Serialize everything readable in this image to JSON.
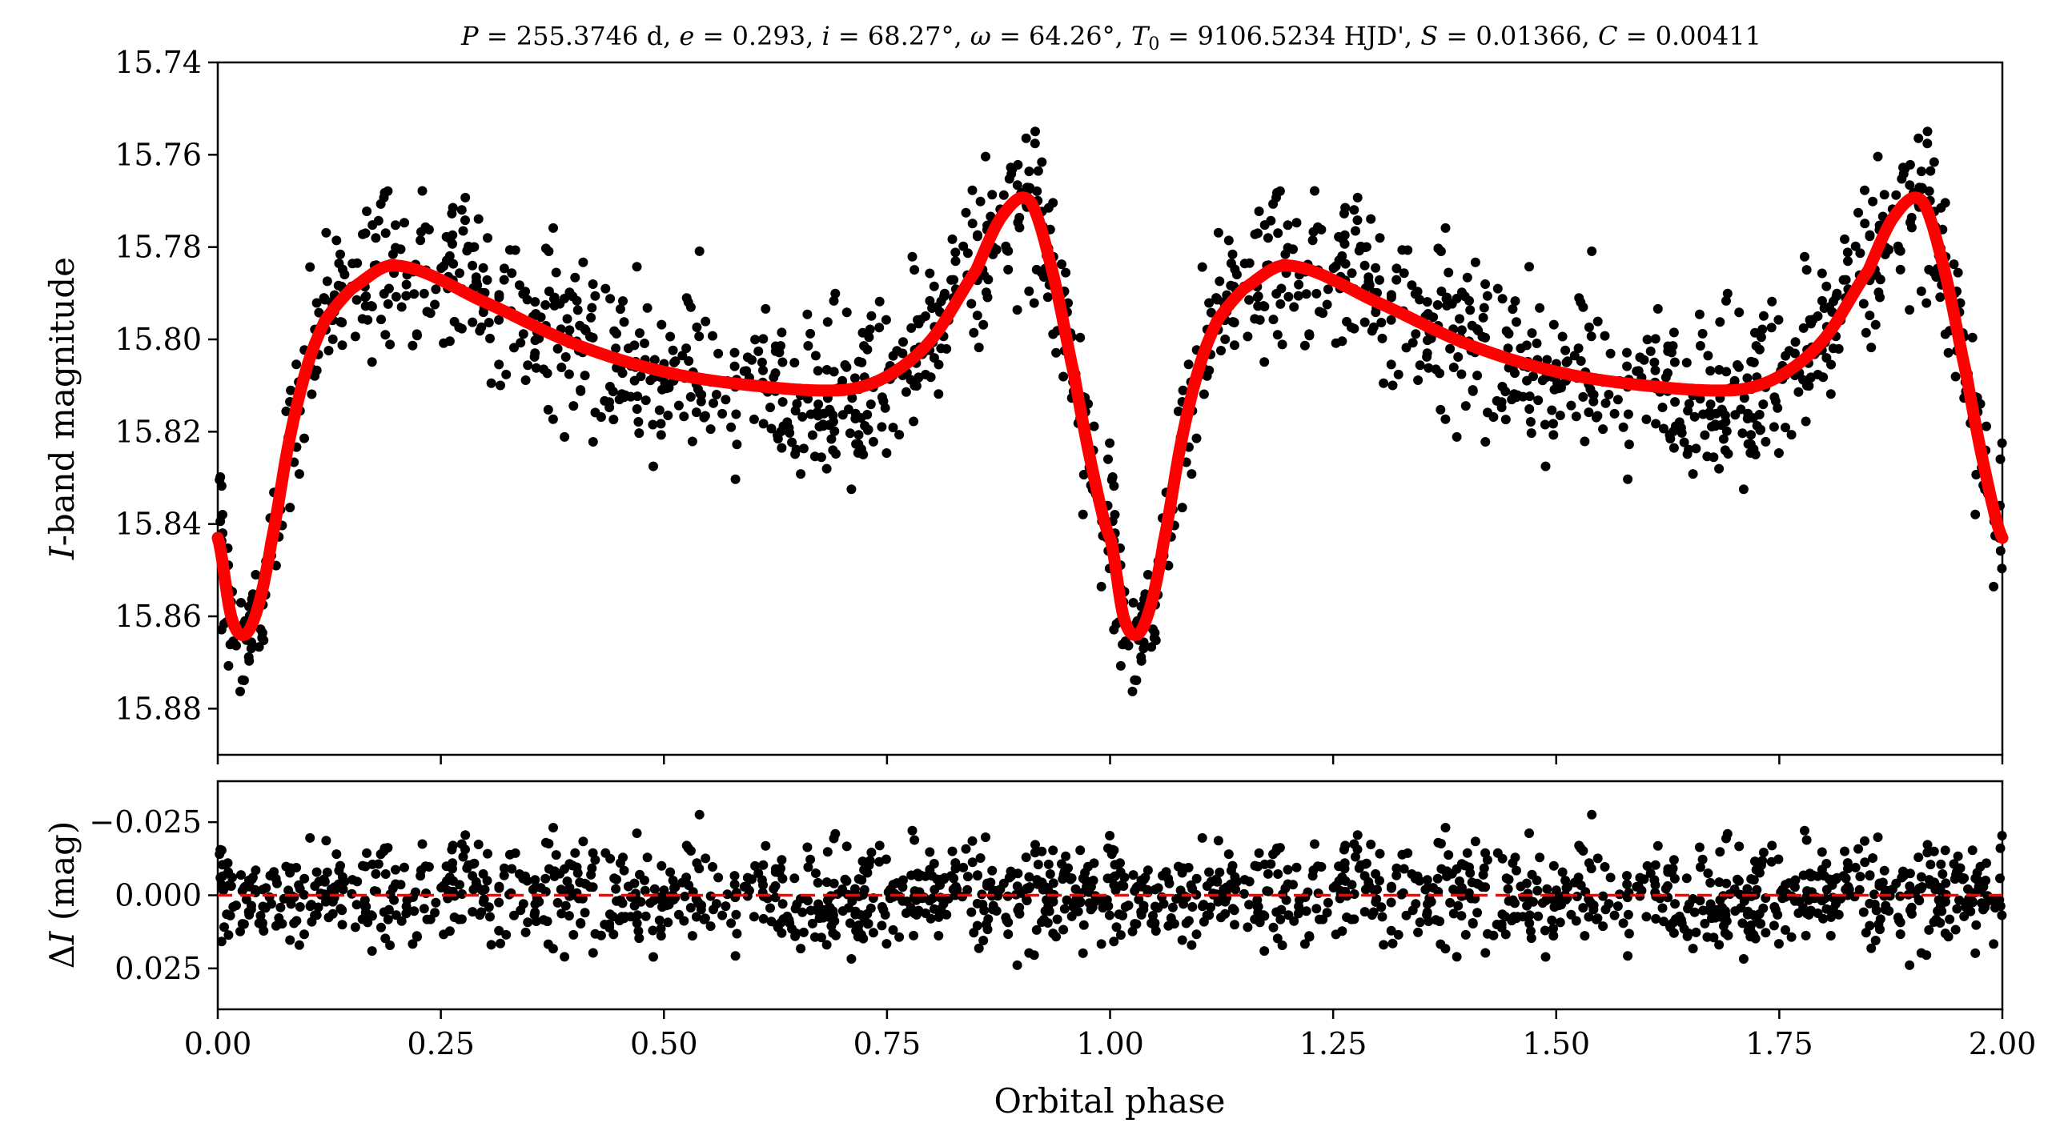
{
  "chart_data": [
    {
      "type": "scatter",
      "title": "P = 255.3746 d, e = 0.293, i = 68.27°, ω = 64.26°, T0 = 9106.5234 HJD', S = 0.01366, C = 0.00411",
      "title_parts": {
        "P": "255.3746",
        "P_unit": "d",
        "e": "0.293",
        "i": "68.27°",
        "omega": "64.26°",
        "T0": "9106.5234",
        "T0_unit": "HJD'",
        "S": "0.01366",
        "C": "0.00411"
      },
      "xlabel": "",
      "ylabel": "I-band magnitude",
      "ylabel_parts": {
        "symbol": "I",
        "text": "-band magnitude"
      },
      "xlim": [
        0.0,
        2.0
      ],
      "ylim": [
        15.89,
        15.74
      ],
      "y_inverted": true,
      "yticks": [
        "15.74",
        "15.76",
        "15.78",
        "15.80",
        "15.82",
        "15.84",
        "15.86",
        "15.88"
      ],
      "model_curve_color": "#ff0000",
      "point_color": "#000000",
      "model_curve_knots": {
        "phase": [
          0.0,
          0.015,
          0.03,
          0.045,
          0.06,
          0.08,
          0.1,
          0.12,
          0.15,
          0.2,
          0.3,
          0.4,
          0.5,
          0.6,
          0.7,
          0.75,
          0.8,
          0.85,
          0.88,
          0.91,
          0.935,
          0.96,
          0.98,
          1.0
        ],
        "mag": [
          15.843,
          15.86,
          15.864,
          15.858,
          15.844,
          15.822,
          15.806,
          15.796,
          15.789,
          15.784,
          15.792,
          15.801,
          15.807,
          15.81,
          15.811,
          15.808,
          15.8,
          15.785,
          15.773,
          15.77,
          15.785,
          15.808,
          15.828,
          15.843
        ]
      },
      "points_note": "phase-folded I-band photometry of the system, repeated over two cycles (phase 0-2)"
    },
    {
      "type": "scatter",
      "xlabel": "Orbital phase",
      "ylabel": "ΔI (mag)",
      "ylabel_parts": {
        "delta": "Δ",
        "symbol": "I",
        "text": " (mag)"
      },
      "xlim": [
        0.0,
        2.0
      ],
      "ylim": [
        0.039,
        -0.039
      ],
      "y_inverted": true,
      "xticks": [
        "0.00",
        "0.25",
        "0.50",
        "0.75",
        "1.00",
        "1.25",
        "1.50",
        "1.75",
        "2.00"
      ],
      "yticks": [
        "−0.025",
        "0.000",
        "0.025"
      ],
      "zero_line_color": "#ff0000",
      "point_color": "#000000",
      "residual_scatter_sd": 0.009
    }
  ]
}
